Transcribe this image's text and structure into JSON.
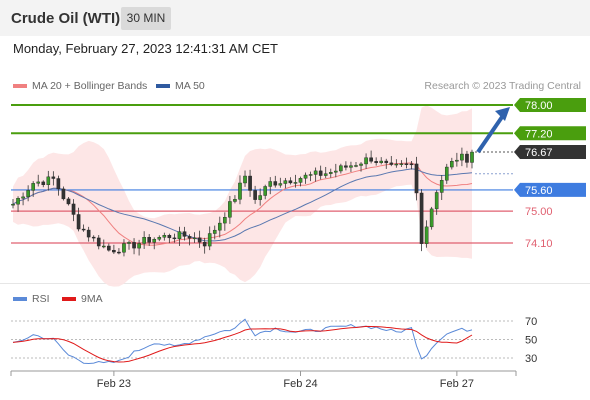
{
  "header": {
    "title": "Crude Oil (WTI)",
    "interval": "30 MIN",
    "datetime": "Monday, February 27, 2023 12:41:31 AM CET"
  },
  "legend": {
    "ma20": "MA 20 + Bollinger Bands",
    "ma50": "MA 50",
    "rsi": "RSI",
    "ma9": "9MA"
  },
  "credit": "Research © 2023 Trading Central",
  "colors": {
    "green_level": "#4a9e0e",
    "blue_level": "#3e7ce0",
    "red_level": "#e06070",
    "current": "#333333",
    "band_fill": "#fde3e3",
    "ma20": "#f08080",
    "ma50": "#5a78b0",
    "arrow": "#2f62ad",
    "rsi": "#5b8ad8",
    "rsi_ma": "#e01a1a"
  },
  "chart_data": {
    "type": "candlestick",
    "price_levels": [
      {
        "label": "78.00",
        "value": 78.0,
        "kind": "resistance"
      },
      {
        "label": "77.20",
        "value": 77.2,
        "kind": "resistance"
      },
      {
        "label": "76.67",
        "value": 76.67,
        "kind": "current"
      },
      {
        "label": "75.60",
        "value": 75.6,
        "kind": "pivot"
      },
      {
        "label": "75.00",
        "value": 75.0,
        "kind": "support"
      },
      {
        "label": "74.10",
        "value": 74.1,
        "kind": "support"
      }
    ],
    "price_range": [
      73.5,
      78.6
    ],
    "price_path": [
      [
        0,
        75.2
      ],
      [
        4,
        75.8
      ],
      [
        8,
        75.9
      ],
      [
        10,
        75.4
      ],
      [
        13,
        74.6
      ],
      [
        16,
        74.2
      ],
      [
        19,
        73.9
      ],
      [
        23,
        74.0
      ],
      [
        27,
        74.2
      ],
      [
        31,
        74.3
      ],
      [
        35,
        74.3
      ],
      [
        38,
        74.1
      ],
      [
        41,
        74.7
      ],
      [
        44,
        75.4
      ],
      [
        46,
        76.0
      ],
      [
        48,
        75.3
      ],
      [
        51,
        75.8
      ],
      [
        55,
        75.9
      ],
      [
        59,
        76.0
      ],
      [
        63,
        76.1
      ],
      [
        67,
        76.3
      ],
      [
        71,
        76.5
      ],
      [
        75,
        76.2
      ],
      [
        79,
        76.3
      ],
      [
        80,
        75.5
      ],
      [
        81,
        74.2
      ],
      [
        82,
        74.6
      ],
      [
        84,
        75.6
      ],
      [
        86,
        76.2
      ],
      [
        88,
        76.5
      ],
      [
        91,
        76.5
      ]
    ],
    "n_candles": 92,
    "x_ticks": [
      {
        "label": "Feb 23",
        "index": 20
      },
      {
        "label": "Feb 24",
        "index": 57
      },
      {
        "label": "Feb 27",
        "index": 88
      }
    ],
    "projection": {
      "from": 76.67,
      "to": 78.0
    },
    "rsi": {
      "levels": [
        70,
        50,
        30
      ],
      "range": [
        20,
        80
      ],
      "path": [
        [
          0,
          45
        ],
        [
          4,
          55
        ],
        [
          8,
          50
        ],
        [
          11,
          33
        ],
        [
          14,
          26
        ],
        [
          18,
          24
        ],
        [
          21,
          26
        ],
        [
          24,
          36
        ],
        [
          28,
          47
        ],
        [
          32,
          42
        ],
        [
          36,
          49
        ],
        [
          40,
          57
        ],
        [
          44,
          62
        ],
        [
          46,
          72
        ],
        [
          48,
          56
        ],
        [
          52,
          62
        ],
        [
          56,
          58
        ],
        [
          60,
          60
        ],
        [
          64,
          63
        ],
        [
          68,
          65
        ],
        [
          72,
          63
        ],
        [
          76,
          58
        ],
        [
          79,
          62
        ],
        [
          80,
          45
        ],
        [
          81,
          30
        ],
        [
          82,
          34
        ],
        [
          84,
          48
        ],
        [
          86,
          56
        ],
        [
          88,
          60
        ],
        [
          91,
          61
        ]
      ]
    }
  }
}
